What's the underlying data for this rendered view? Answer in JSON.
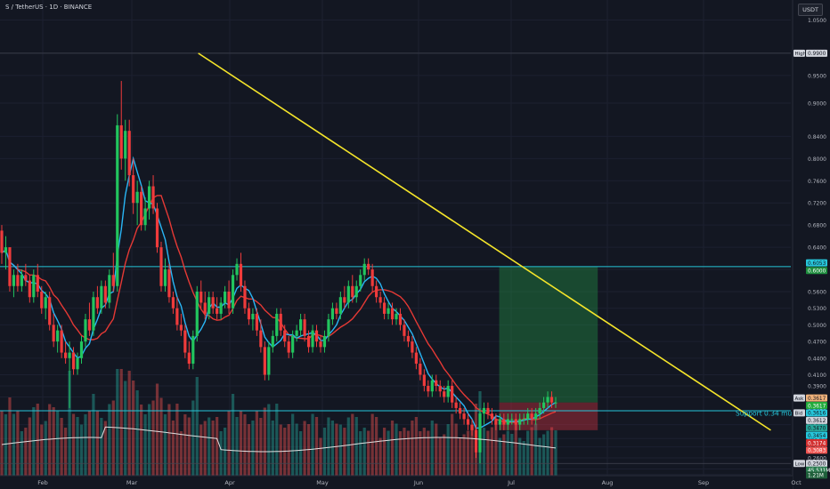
{
  "header": {
    "symbol": "S / TetherUS · 1D · BINANCE",
    "currency": "USDT"
  },
  "chart_data": {
    "type": "candlestick",
    "ylim": [
      0.228,
      1.07
    ],
    "y_ticks": [
      "1.0500",
      "0.9900",
      "0.9500",
      "0.9000",
      "0.8400",
      "0.8000",
      "0.7600",
      "0.7200",
      "0.6800",
      "0.6400",
      "0.6000",
      "0.5600",
      "0.5300",
      "0.5000",
      "0.4700",
      "0.4400",
      "0.4100",
      "0.3900",
      "0.3700",
      "0.3450",
      "0.3200",
      "0.2950",
      "0.2800",
      "0.2600",
      "0.2400",
      "0.2300"
    ],
    "x_ticks": [
      "Feb",
      "Mar",
      "Apr",
      "May",
      "Jun",
      "Jul",
      "Aug",
      "Sep",
      "Oct"
    ],
    "price_labels": [
      {
        "tag": "High",
        "value": "0.9900",
        "color": "#d1d4dc",
        "text": "#131722"
      },
      {
        "value": "0.6053",
        "color": "#26c6da",
        "text": "#131722"
      },
      {
        "value": "0.6000",
        "color": "#1e8e3e",
        "text": "#ffffff"
      },
      {
        "tag": "Ask",
        "value": "0.3617",
        "color": "#f0b27a",
        "text": "#131722"
      },
      {
        "value": "0.3617",
        "color": "#22ab3b",
        "text": "#ffffff"
      },
      {
        "tag": "Bid",
        "value": "0.3616",
        "color": "#26c6da",
        "text": "#131722"
      },
      {
        "value": "0.3612",
        "color": "#d1d4dc",
        "text": "#131722"
      },
      {
        "value": "0.3470",
        "color": "#26a69a",
        "text": "#131722"
      },
      {
        "value": "0.3454",
        "color": "#26c6da",
        "text": "#131722"
      },
      {
        "value": "0.3174",
        "color": "#d32f2f",
        "text": "#ffffff"
      },
      {
        "value": "0.3083",
        "color": "#ef5350",
        "text": "#ffffff"
      },
      {
        "tag": "Low",
        "value": "0.2500",
        "color": "#d1d4dc",
        "text": "#131722"
      },
      {
        "value": "45.531M",
        "color": "#2a7b4f",
        "text": "#ffffff"
      },
      {
        "value": "1.21M",
        "color": "#1e5f3a",
        "text": "#ffffff"
      }
    ],
    "annotation": "Support 0.34 must hold",
    "horizontal_levels": [
      0.605,
      0.345
    ],
    "trendline": {
      "start": [
        "Feb 22",
        0.99
      ],
      "end": [
        "Sep 22",
        0.31
      ]
    },
    "position": {
      "entry": 0.36,
      "target": 0.605,
      "stop": 0.31,
      "from": "Jun 28",
      "to": "Jul 28"
    },
    "candles_ohlc": [
      [
        0.67,
        0.68,
        0.61,
        0.63
      ],
      [
        0.63,
        0.66,
        0.6,
        0.64
      ],
      [
        0.64,
        0.64,
        0.56,
        0.57
      ],
      [
        0.57,
        0.6,
        0.55,
        0.59
      ],
      [
        0.59,
        0.61,
        0.56,
        0.57
      ],
      [
        0.57,
        0.6,
        0.56,
        0.59
      ],
      [
        0.59,
        0.61,
        0.57,
        0.58
      ],
      [
        0.58,
        0.59,
        0.54,
        0.55
      ],
      [
        0.55,
        0.6,
        0.54,
        0.59
      ],
      [
        0.59,
        0.61,
        0.55,
        0.56
      ],
      [
        0.56,
        0.57,
        0.52,
        0.53
      ],
      [
        0.53,
        0.56,
        0.51,
        0.55
      ],
      [
        0.55,
        0.56,
        0.49,
        0.5
      ],
      [
        0.5,
        0.52,
        0.46,
        0.47
      ],
      [
        0.47,
        0.5,
        0.45,
        0.49
      ],
      [
        0.49,
        0.5,
        0.44,
        0.45
      ],
      [
        0.45,
        0.47,
        0.43,
        0.44
      ],
      [
        0.44,
        0.47,
        0.35,
        0.45
      ],
      [
        0.45,
        0.46,
        0.41,
        0.42
      ],
      [
        0.42,
        0.45,
        0.41,
        0.44
      ],
      [
        0.44,
        0.48,
        0.43,
        0.47
      ],
      [
        0.47,
        0.52,
        0.46,
        0.51
      ],
      [
        0.51,
        0.54,
        0.48,
        0.49
      ],
      [
        0.49,
        0.56,
        0.48,
        0.55
      ],
      [
        0.55,
        0.57,
        0.52,
        0.53
      ],
      [
        0.53,
        0.58,
        0.52,
        0.57
      ],
      [
        0.57,
        0.58,
        0.53,
        0.54
      ],
      [
        0.54,
        0.6,
        0.53,
        0.59
      ],
      [
        0.59,
        0.63,
        0.56,
        0.57
      ],
      [
        0.57,
        0.88,
        0.56,
        0.86
      ],
      [
        0.86,
        0.94,
        0.78,
        0.8
      ],
      [
        0.8,
        0.87,
        0.76,
        0.85
      ],
      [
        0.85,
        0.87,
        0.75,
        0.77
      ],
      [
        0.77,
        0.8,
        0.7,
        0.72
      ],
      [
        0.72,
        0.76,
        0.68,
        0.74
      ],
      [
        0.74,
        0.75,
        0.67,
        0.68
      ],
      [
        0.68,
        0.73,
        0.67,
        0.71
      ],
      [
        0.71,
        0.76,
        0.69,
        0.75
      ],
      [
        0.75,
        0.77,
        0.7,
        0.71
      ],
      [
        0.71,
        0.72,
        0.63,
        0.64
      ],
      [
        0.64,
        0.65,
        0.56,
        0.57
      ],
      [
        0.57,
        0.62,
        0.56,
        0.6
      ],
      [
        0.6,
        0.61,
        0.54,
        0.55
      ],
      [
        0.55,
        0.56,
        0.52,
        0.53
      ],
      [
        0.53,
        0.55,
        0.49,
        0.5
      ],
      [
        0.5,
        0.52,
        0.48,
        0.49
      ],
      [
        0.49,
        0.5,
        0.44,
        0.45
      ],
      [
        0.45,
        0.47,
        0.42,
        0.43
      ],
      [
        0.43,
        0.49,
        0.42,
        0.48
      ],
      [
        0.48,
        0.57,
        0.47,
        0.56
      ],
      [
        0.56,
        0.58,
        0.53,
        0.54
      ],
      [
        0.54,
        0.56,
        0.51,
        0.52
      ],
      [
        0.52,
        0.56,
        0.51,
        0.55
      ],
      [
        0.55,
        0.56,
        0.52,
        0.53
      ],
      [
        0.53,
        0.55,
        0.51,
        0.52
      ],
      [
        0.52,
        0.55,
        0.51,
        0.54
      ],
      [
        0.54,
        0.57,
        0.53,
        0.56
      ],
      [
        0.56,
        0.58,
        0.52,
        0.53
      ],
      [
        0.53,
        0.6,
        0.52,
        0.59
      ],
      [
        0.59,
        0.62,
        0.58,
        0.61
      ],
      [
        0.61,
        0.63,
        0.56,
        0.57
      ],
      [
        0.57,
        0.58,
        0.52,
        0.53
      ],
      [
        0.53,
        0.54,
        0.5,
        0.51
      ],
      [
        0.51,
        0.53,
        0.49,
        0.52
      ],
      [
        0.52,
        0.53,
        0.48,
        0.49
      ],
      [
        0.49,
        0.51,
        0.45,
        0.46
      ],
      [
        0.46,
        0.47,
        0.4,
        0.41
      ],
      [
        0.41,
        0.47,
        0.4,
        0.46
      ],
      [
        0.46,
        0.49,
        0.45,
        0.48
      ],
      [
        0.48,
        0.53,
        0.47,
        0.52
      ],
      [
        0.52,
        0.53,
        0.48,
        0.49
      ],
      [
        0.49,
        0.5,
        0.46,
        0.47
      ],
      [
        0.47,
        0.48,
        0.44,
        0.45
      ],
      [
        0.45,
        0.49,
        0.44,
        0.48
      ],
      [
        0.48,
        0.5,
        0.47,
        0.49
      ],
      [
        0.49,
        0.52,
        0.48,
        0.51
      ],
      [
        0.51,
        0.52,
        0.47,
        0.48
      ],
      [
        0.48,
        0.49,
        0.45,
        0.46
      ],
      [
        0.46,
        0.5,
        0.45,
        0.49
      ],
      [
        0.49,
        0.5,
        0.46,
        0.47
      ],
      [
        0.47,
        0.48,
        0.45,
        0.46
      ],
      [
        0.46,
        0.49,
        0.45,
        0.48
      ],
      [
        0.48,
        0.52,
        0.47,
        0.51
      ],
      [
        0.51,
        0.54,
        0.5,
        0.53
      ],
      [
        0.53,
        0.54,
        0.51,
        0.52
      ],
      [
        0.52,
        0.56,
        0.51,
        0.55
      ],
      [
        0.55,
        0.57,
        0.53,
        0.54
      ],
      [
        0.54,
        0.58,
        0.53,
        0.57
      ],
      [
        0.57,
        0.59,
        0.54,
        0.55
      ],
      [
        0.55,
        0.58,
        0.54,
        0.57
      ],
      [
        0.57,
        0.6,
        0.56,
        0.59
      ],
      [
        0.59,
        0.62,
        0.58,
        0.61
      ],
      [
        0.61,
        0.62,
        0.59,
        0.6
      ],
      [
        0.6,
        0.61,
        0.56,
        0.57
      ],
      [
        0.57,
        0.58,
        0.54,
        0.55
      ],
      [
        0.55,
        0.56,
        0.53,
        0.54
      ],
      [
        0.54,
        0.55,
        0.51,
        0.52
      ],
      [
        0.52,
        0.54,
        0.51,
        0.53
      ],
      [
        0.53,
        0.54,
        0.5,
        0.51
      ],
      [
        0.51,
        0.53,
        0.5,
        0.52
      ],
      [
        0.52,
        0.53,
        0.49,
        0.5
      ],
      [
        0.5,
        0.51,
        0.47,
        0.48
      ],
      [
        0.48,
        0.49,
        0.46,
        0.47
      ],
      [
        0.47,
        0.48,
        0.44,
        0.45
      ],
      [
        0.45,
        0.46,
        0.42,
        0.43
      ],
      [
        0.43,
        0.44,
        0.4,
        0.41
      ],
      [
        0.41,
        0.42,
        0.38,
        0.39
      ],
      [
        0.39,
        0.4,
        0.37,
        0.38
      ],
      [
        0.38,
        0.41,
        0.37,
        0.4
      ],
      [
        0.4,
        0.41,
        0.38,
        0.39
      ],
      [
        0.39,
        0.4,
        0.37,
        0.38
      ],
      [
        0.38,
        0.39,
        0.36,
        0.37
      ],
      [
        0.37,
        0.4,
        0.36,
        0.39
      ],
      [
        0.39,
        0.4,
        0.35,
        0.36
      ],
      [
        0.36,
        0.37,
        0.34,
        0.35
      ],
      [
        0.35,
        0.36,
        0.33,
        0.34
      ],
      [
        0.34,
        0.35,
        0.32,
        0.33
      ],
      [
        0.33,
        0.34,
        0.31,
        0.32
      ],
      [
        0.32,
        0.33,
        0.3,
        0.31
      ],
      [
        0.31,
        0.32,
        0.26,
        0.27
      ],
      [
        0.27,
        0.35,
        0.25,
        0.34
      ],
      [
        0.34,
        0.36,
        0.32,
        0.35
      ],
      [
        0.35,
        0.36,
        0.33,
        0.34
      ],
      [
        0.34,
        0.35,
        0.32,
        0.33
      ],
      [
        0.33,
        0.34,
        0.31,
        0.32
      ],
      [
        0.32,
        0.34,
        0.31,
        0.33
      ],
      [
        0.33,
        0.34,
        0.31,
        0.32
      ],
      [
        0.32,
        0.34,
        0.31,
        0.33
      ],
      [
        0.33,
        0.34,
        0.32,
        0.33
      ],
      [
        0.33,
        0.34,
        0.31,
        0.32
      ],
      [
        0.32,
        0.34,
        0.31,
        0.33
      ],
      [
        0.33,
        0.34,
        0.32,
        0.33
      ],
      [
        0.33,
        0.35,
        0.32,
        0.34
      ],
      [
        0.34,
        0.35,
        0.32,
        0.33
      ],
      [
        0.33,
        0.35,
        0.32,
        0.34
      ],
      [
        0.34,
        0.36,
        0.33,
        0.35
      ],
      [
        0.35,
        0.37,
        0.34,
        0.36
      ],
      [
        0.36,
        0.38,
        0.35,
        0.37
      ],
      [
        0.37,
        0.38,
        0.35,
        0.36
      ],
      [
        0.36,
        0.37,
        0.35,
        0.36
      ]
    ]
  }
}
